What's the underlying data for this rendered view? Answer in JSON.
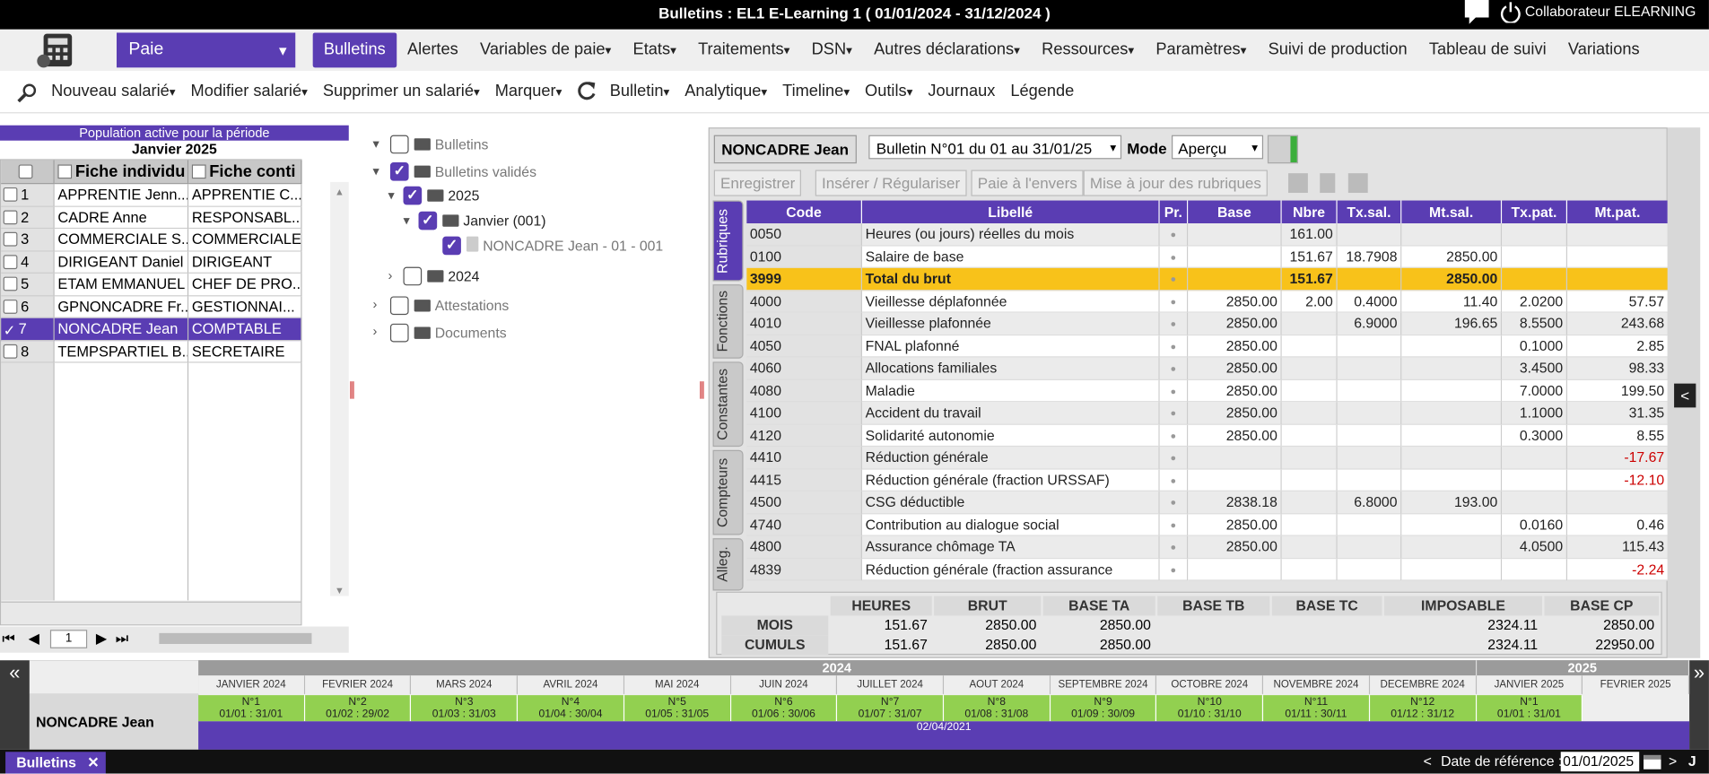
{
  "header": {
    "title": "Bulletins : EL1 E-Learning 1 ( 01/01/2024 - 31/12/2024 )",
    "user": "Collaborateur ELEARNING"
  },
  "module": "Paie",
  "menu": [
    "Bulletins",
    "Alertes",
    "Variables de paie",
    "Etats",
    "Traitements",
    "DSN",
    "Autres déclarations",
    "Ressources",
    "Paramètres",
    "Suivi de production",
    "Tableau de suivi",
    "Variations"
  ],
  "toolbar": [
    "Nouveau salarié",
    "Modifier salarié",
    "Supprimer un salarié",
    "Marquer",
    "Bulletin",
    "Analytique",
    "Timeline",
    "Outils",
    "Journaux",
    "Légende"
  ],
  "population": {
    "title": "Population active pour la période",
    "period": "Janvier 2025",
    "columns": [
      "Fiche individu",
      "Fiche conti"
    ],
    "rows": [
      [
        "1",
        "APPRENTIE Jenn...",
        "APPRENTIE C..."
      ],
      [
        "2",
        "CADRE Anne",
        "RESPONSABL..."
      ],
      [
        "3",
        "COMMERCIALE S...",
        "COMMERCIALE"
      ],
      [
        "4",
        "DIRIGEANT Daniel",
        "DIRIGEANT"
      ],
      [
        "5",
        "ETAM EMMANUEL",
        "CHEF DE PRO..."
      ],
      [
        "6",
        "GPNONCADRE Fr...",
        "GESTIONNAI..."
      ],
      [
        "7",
        "NONCADRE Jean",
        "COMPTABLE"
      ],
      [
        "8",
        "TEMPSPARTIEL B...",
        "SECRETAIRE"
      ]
    ],
    "page": "1"
  },
  "tree": [
    "Bulletins",
    "Bulletins validés",
    "2025",
    "Janvier (001)",
    "NONCADRE Jean - 01 - 001",
    "2024",
    "Attestations",
    "Documents"
  ],
  "bulletin": {
    "employee": "NONCADRE Jean",
    "selector": "Bulletin N°01 du 01 au 31/01/25",
    "mode_label": "Mode",
    "mode": "Aperçu",
    "actions": [
      "Enregistrer",
      "Insérer / Régulariser",
      "Paie à l'envers",
      "Mise à jour des rubriques"
    ],
    "tabs": [
      "Rubriques",
      "Fonctions",
      "Constantes",
      "Compteurs",
      "Alleg."
    ],
    "columns": [
      "Code",
      "Libellé",
      "Pr.",
      "Base",
      "Nbre",
      "Tx.sal.",
      "Mt.sal.",
      "Tx.pat.",
      "Mt.pat."
    ],
    "rows": [
      [
        "0050",
        "Heures (ou jours) réelles du mois",
        null,
        "161.00",
        null,
        null,
        null,
        null
      ],
      [
        "0100",
        "Salaire de base",
        null,
        "151.67",
        "18.7908",
        "2850.00",
        null,
        null
      ],
      [
        "3999",
        "Total du brut",
        null,
        "151.67",
        null,
        "2850.00",
        null,
        null
      ],
      [
        "4000",
        "Vieillesse déplafonnée",
        "2850.00",
        "2.00",
        "0.4000",
        "11.40",
        "2.0200",
        "57.57"
      ],
      [
        "4010",
        "Vieillesse plafonnée",
        "2850.00",
        null,
        "6.9000",
        "196.65",
        "8.5500",
        "243.68"
      ],
      [
        "4050",
        "FNAL plafonné",
        "2850.00",
        null,
        null,
        null,
        "0.1000",
        "2.85"
      ],
      [
        "4060",
        "Allocations familiales",
        "2850.00",
        null,
        null,
        null,
        "3.4500",
        "98.33"
      ],
      [
        "4080",
        "Maladie",
        "2850.00",
        null,
        null,
        null,
        "7.0000",
        "199.50"
      ],
      [
        "4100",
        "Accident du travail",
        "2850.00",
        null,
        null,
        null,
        "1.1000",
        "31.35"
      ],
      [
        "4120",
        "Solidarité autonomie",
        "2850.00",
        null,
        null,
        null,
        "0.3000",
        "8.55"
      ],
      [
        "4410",
        "Réduction générale",
        null,
        null,
        null,
        null,
        null,
        "-17.67"
      ],
      [
        "4415",
        "Réduction générale (fraction URSSAF)",
        null,
        null,
        null,
        null,
        null,
        "-12.10"
      ],
      [
        "4500",
        "CSG déductible",
        "2838.18",
        null,
        "6.8000",
        "193.00",
        null,
        null
      ],
      [
        "4740",
        "Contribution au dialogue social",
        "2850.00",
        null,
        null,
        null,
        "0.0160",
        "0.46"
      ],
      [
        "4800",
        "Assurance chômage TA",
        "2850.00",
        null,
        null,
        null,
        "4.0500",
        "115.43"
      ],
      [
        "4839",
        "Réduction générale (fraction assurance",
        null,
        null,
        null,
        null,
        null,
        "-2.24"
      ]
    ],
    "totals": {
      "columns": [
        "HEURES",
        "BRUT",
        "BASE TA",
        "BASE TB",
        "BASE TC",
        "IMPOSABLE",
        "BASE CP"
      ],
      "rows": [
        {
          "label": "MOIS",
          "values": [
            "151.67",
            "2850.00",
            "2850.00",
            null,
            null,
            "2324.11",
            "2850.00"
          ]
        },
        {
          "label": "CUMULS",
          "values": [
            "151.67",
            "2850.00",
            "2850.00",
            null,
            null,
            "2324.11",
            "22950.00"
          ]
        }
      ]
    }
  },
  "timeline": {
    "years": [
      "2024",
      "2025"
    ],
    "months": [
      "JANVIER 2024",
      "FEVRIER 2024",
      "MARS 2024",
      "AVRIL 2024",
      "MAI 2024",
      "JUIN 2024",
      "JUILLET 2024",
      "AOUT 2024",
      "SEPTEMBRE 2024",
      "OCTOBRE 2024",
      "NOVEMBRE 2024",
      "DECEMBRE 2024",
      "JANVIER 2025",
      "FEVRIER 2025"
    ],
    "employee": "NONCADRE Jean",
    "bulletins": [
      {
        "number": "N°1",
        "period": "01/01 : 31/01"
      },
      {
        "number": "N°2",
        "period": "01/02 : 29/02"
      },
      {
        "number": "N°3",
        "period": "01/03 : 31/03"
      },
      {
        "number": "N°4",
        "period": "01/04 : 30/04"
      },
      {
        "number": "N°5",
        "period": "01/05 : 31/05"
      },
      {
        "number": "N°6",
        "period": "01/06 : 30/06"
      },
      {
        "number": "N°7",
        "period": "01/07 : 31/07"
      },
      {
        "number": "N°8",
        "period": "01/08 : 31/08"
      },
      {
        "number": "N°9",
        "period": "01/09 : 30/09"
      },
      {
        "number": "N°10",
        "period": "01/10 : 31/10"
      },
      {
        "number": "N°11",
        "period": "01/11 : 30/11"
      },
      {
        "number": "N°12",
        "period": "01/12 : 31/12"
      },
      {
        "number": "N°1",
        "period": "01/01 : 31/01"
      }
    ],
    "contract": "02/04/2021"
  },
  "footer": {
    "tab": "Bulletins",
    "reference_label": "Date de référence :",
    "reference_date": "01/01/2025",
    "shortcut": "J"
  }
}
